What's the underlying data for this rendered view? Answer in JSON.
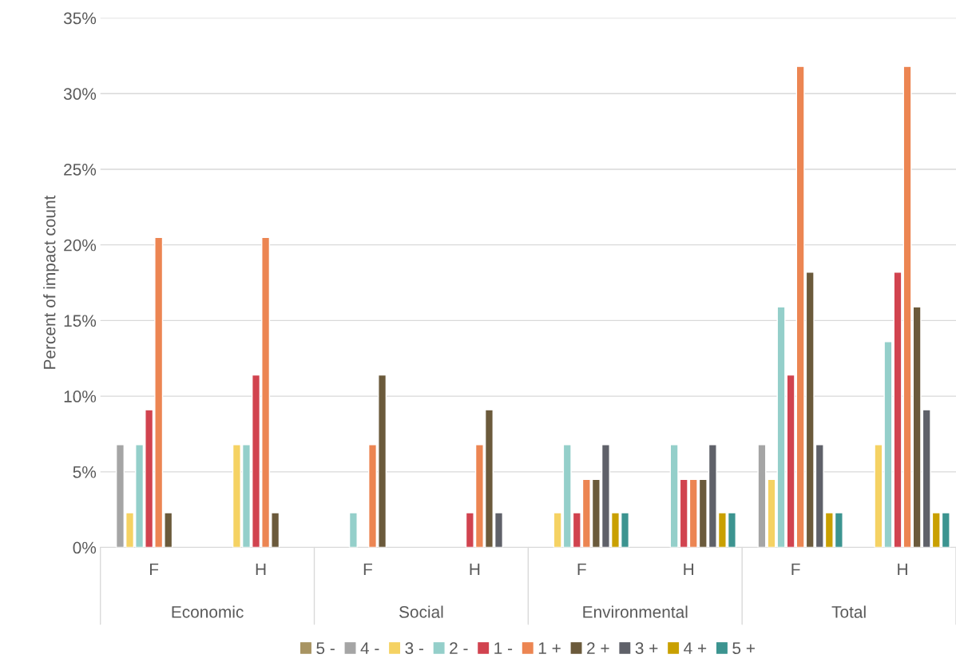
{
  "chart_data": {
    "type": "bar",
    "ylabel": "Percent of impact count",
    "categories": [
      "F",
      "H",
      "F",
      "H",
      "F",
      "H",
      "F",
      "H"
    ],
    "annotations": [
      "Economic",
      "Social",
      "Environmental",
      "Total"
    ],
    "series": [
      {
        "name": "5 -",
        "color": "#a89462",
        "values": [
          null,
          null,
          null,
          null,
          null,
          null,
          null,
          null
        ]
      },
      {
        "name": "4 -",
        "color": "#a5a5a5",
        "values": [
          6.8,
          null,
          null,
          null,
          null,
          null,
          6.8,
          null
        ]
      },
      {
        "name": "3 -",
        "color": "#f5d263",
        "values": [
          2.3,
          6.8,
          null,
          null,
          2.3,
          null,
          4.5,
          6.8
        ]
      },
      {
        "name": "2 -",
        "color": "#94cfca",
        "values": [
          6.8,
          6.8,
          2.3,
          null,
          6.8,
          6.8,
          15.9,
          13.6
        ]
      },
      {
        "name": "1 -",
        "color": "#d1434f",
        "values": [
          9.1,
          11.4,
          null,
          2.3,
          2.3,
          4.5,
          11.4,
          18.2
        ]
      },
      {
        "name": "1 +",
        "color": "#ec8552",
        "values": [
          20.5,
          20.5,
          6.8,
          6.8,
          4.5,
          4.5,
          31.8,
          31.8
        ]
      },
      {
        "name": "2 +",
        "color": "#6b5a3b",
        "values": [
          2.3,
          2.3,
          11.4,
          9.1,
          4.5,
          4.5,
          18.2,
          15.9
        ]
      },
      {
        "name": "3 +",
        "color": "#5f6169",
        "values": [
          null,
          null,
          null,
          2.3,
          6.8,
          6.8,
          6.8,
          9.1
        ]
      },
      {
        "name": "4 +",
        "color": "#c9a000",
        "values": [
          null,
          null,
          null,
          null,
          2.3,
          2.3,
          2.3,
          2.3
        ]
      },
      {
        "name": "5 +",
        "color": "#3c9490",
        "values": [
          null,
          null,
          null,
          null,
          2.3,
          2.3,
          2.3,
          2.3
        ]
      }
    ],
    "ylim": [
      0,
      35
    ],
    "yticks": [
      {
        "value": 0,
        "label": "0%"
      },
      {
        "value": 5,
        "label": "5%"
      },
      {
        "value": 10,
        "label": "10%"
      },
      {
        "value": 15,
        "label": "15%"
      },
      {
        "value": 20,
        "label": "20%"
      },
      {
        "value": 25,
        "label": "25%"
      },
      {
        "value": 30,
        "label": "30%"
      },
      {
        "value": 35,
        "label": "35%"
      }
    ],
    "grid": "y",
    "legend": "bottom"
  }
}
